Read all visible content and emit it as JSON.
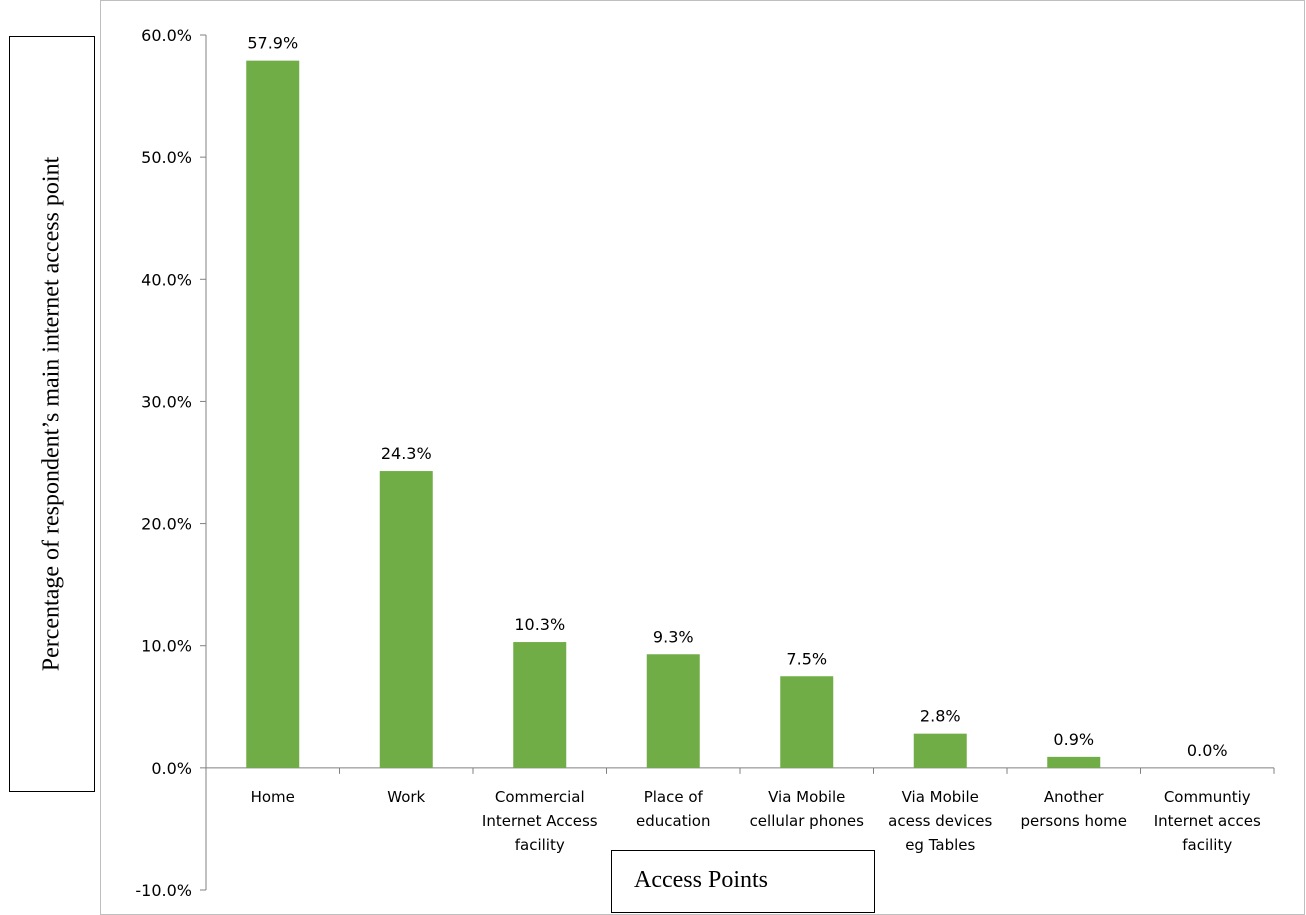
{
  "chart_data": {
    "type": "bar",
    "categories": [
      [
        "Home"
      ],
      [
        "Work"
      ],
      [
        "Commercial",
        "Internet Access",
        "facility"
      ],
      [
        "Place of",
        "education"
      ],
      [
        "Via Mobile",
        "cellular phones"
      ],
      [
        "Via Mobile",
        "acess devices",
        "eg Tables"
      ],
      [
        "Another",
        "persons home"
      ],
      [
        "Communtiy",
        "Internet acces",
        "facility"
      ]
    ],
    "values": [
      57.9,
      24.3,
      10.3,
      9.3,
      7.5,
      2.8,
      0.9,
      0.0
    ],
    "data_labels": [
      "57.9%",
      "24.3%",
      "10.3%",
      "9.3%",
      "7.5%",
      "2.8%",
      "0.9%",
      "0.0%"
    ],
    "ylim": [
      -10,
      60
    ],
    "yticks": [
      60,
      50,
      40,
      30,
      20,
      10,
      0,
      -10
    ],
    "ytick_labels": [
      "60.0%",
      "50.0%",
      "40.0%",
      "30.0%",
      "20.0%",
      "10.0%",
      "0.0%",
      "-10.0%"
    ],
    "xlabel": "Access Points",
    "ylabel": "Percentage of respondent’s main internet access point",
    "bar_color": "#70AD47",
    "grid": false,
    "legend": "none"
  }
}
